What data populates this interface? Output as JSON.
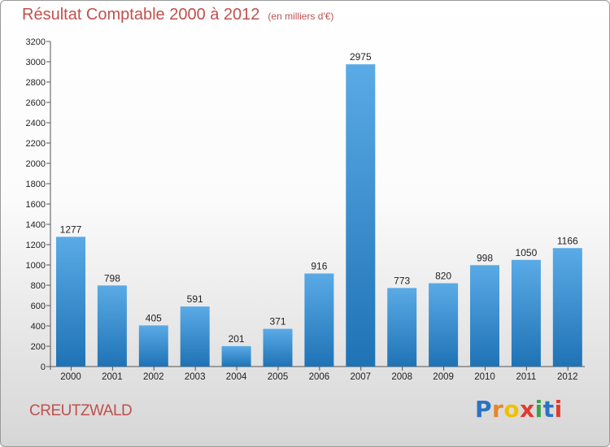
{
  "title": "Résultat Comptable 2000 à 2012",
  "subtitle": "(en milliers d'€)",
  "city": "CREUTZWALD",
  "logo": "Proxiti",
  "colors": {
    "title": "#c0504d",
    "bar_light": "#5aaae6",
    "bar_dark": "#1f73b5",
    "logo": [
      "#2b73c2",
      "#e6862a",
      "#f0c000",
      "#e23a2f",
      "#3aa24a",
      "#2b73c2",
      "#e23a2f"
    ]
  },
  "chart_data": {
    "type": "bar",
    "title": "Résultat Comptable 2000 à 2012",
    "subtitle": "(en milliers d'€)",
    "xlabel": "",
    "ylabel": "",
    "ylim": [
      0,
      3200
    ],
    "ytick_step": 200,
    "grid": false,
    "categories": [
      "2000",
      "2001",
      "2002",
      "2003",
      "2004",
      "2005",
      "2006",
      "2007",
      "2008",
      "2009",
      "2010",
      "2011",
      "2012"
    ],
    "values": [
      1277,
      798,
      405,
      591,
      201,
      371,
      916,
      2975,
      773,
      820,
      998,
      1050,
      1166
    ]
  }
}
